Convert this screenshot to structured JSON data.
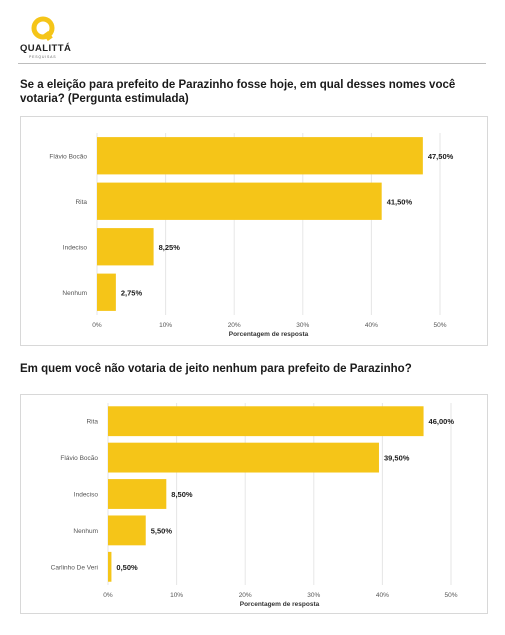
{
  "brand": {
    "name": "QUALITTÁ",
    "subtitle": "PESQUISAS",
    "logo_color": "#F5C518"
  },
  "colors": {
    "bar": "#F5C518",
    "text": "#1a1a1a",
    "grid": "#e6e6e6"
  },
  "questions": [
    {
      "title": "Se a eleição para prefeito de Parazinho fosse hoje, em qual desses nomes você votaria? (Pergunta estimulada)"
    },
    {
      "title": "Em quem você não votaria de jeito nenhum para prefeito de Parazinho?"
    }
  ],
  "chart_data": [
    {
      "type": "bar",
      "orientation": "horizontal",
      "categories": [
        "Flávio Bocão",
        "Rita",
        "Indeciso",
        "Nenhum"
      ],
      "values": [
        47.5,
        41.5,
        8.25,
        2.75
      ],
      "value_labels": [
        "47,50%",
        "41,50%",
        "8,25%",
        "2,75%"
      ],
      "xlabel": "Porcentagem de resposta",
      "ylabel": "",
      "xlim": [
        0,
        50
      ],
      "xticks": [
        "0%",
        "10%",
        "20%",
        "30%",
        "40%",
        "50%"
      ],
      "grid": true
    },
    {
      "type": "bar",
      "orientation": "horizontal",
      "categories": [
        "Rita",
        "Flávio Bocão",
        "Indeciso",
        "Nenhum",
        "Carlinho De Veri"
      ],
      "values": [
        46.0,
        39.5,
        8.5,
        5.5,
        0.5
      ],
      "value_labels": [
        "46,00%",
        "39,50%",
        "8,50%",
        "5,50%",
        "0,50%"
      ],
      "xlabel": "Porcentagem de resposta",
      "ylabel": "",
      "xlim": [
        0,
        50
      ],
      "xticks": [
        "0%",
        "10%",
        "20%",
        "30%",
        "40%",
        "50%"
      ],
      "grid": true
    }
  ]
}
